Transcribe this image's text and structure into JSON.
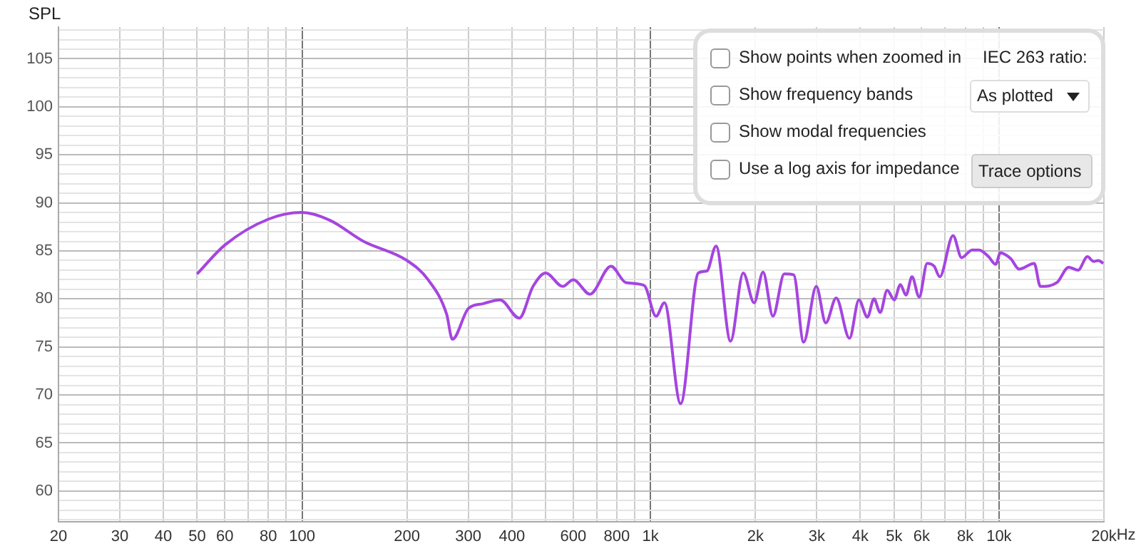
{
  "chart_data": {
    "type": "line",
    "ylabel": "SPL",
    "color": "#a545e0",
    "grid": true,
    "legend": false,
    "marker": "none",
    "line_style": "solid",
    "log": "x",
    "x": [
      50,
      60,
      80,
      100,
      120,
      150,
      200,
      230,
      260,
      270,
      300,
      330,
      370,
      420,
      460,
      500,
      560,
      600,
      670,
      770,
      850,
      959,
      1037,
      1096,
      1220,
      1371,
      1450,
      1542,
      1697,
      1845,
      1983,
      2103,
      2245,
      2420,
      2576,
      2750,
      2990,
      3183,
      3410,
      3724,
      3963,
      4191,
      4377,
      4560,
      4777,
      5004,
      5211,
      5409,
      5627,
      5900,
      6222,
      6516,
      6760,
      7380,
      7810,
      8370,
      8770,
      9330,
      9780,
      10090,
      10800,
      11420,
      12620,
      13140,
      14660,
      15840,
      16860,
      17940,
      18690,
      19290,
      19910
    ],
    "values": [
      82.6,
      85.6,
      88.3,
      89.0,
      88.2,
      86.0,
      84.0,
      82.0,
      78.4,
      75.8,
      79.0,
      79.5,
      79.9,
      78.0,
      81.3,
      82.7,
      81.3,
      82.0,
      80.5,
      83.4,
      81.7,
      81.4,
      78.2,
      79.6,
      69.1,
      82.7,
      82.9,
      85.5,
      75.6,
      82.7,
      79.6,
      82.8,
      78.2,
      82.6,
      82.5,
      75.5,
      81.3,
      77.5,
      80.1,
      75.9,
      79.9,
      78.1,
      80.0,
      78.6,
      80.9,
      79.9,
      81.5,
      80.4,
      82.3,
      80.2,
      83.7,
      83.4,
      82.3,
      86.6,
      84.3,
      85.1,
      85.1,
      84.4,
      83.6,
      84.8,
      84.2,
      83.1,
      83.7,
      81.3,
      81.7,
      83.3,
      83.0,
      84.4,
      83.9,
      84.0,
      83.7
    ],
    "xlim": [
      20,
      20000
    ],
    "xticks": [
      20,
      30,
      40,
      50,
      60,
      {
        "value": 70,
        "label": null
      },
      80,
      {
        "value": 90,
        "label": null
      },
      100,
      200,
      300,
      400,
      {
        "value": 500,
        "label": null
      },
      600,
      {
        "value": 700,
        "label": null
      },
      800,
      {
        "value": 900,
        "label": null
      },
      {
        "value": 1000,
        "label": "1k"
      },
      {
        "value": 2000,
        "label": "2k"
      },
      {
        "value": 3000,
        "label": "3k"
      },
      {
        "value": 4000,
        "label": "4k"
      },
      {
        "value": 5000,
        "label": "5k"
      },
      {
        "value": 6000,
        "label": "6k"
      },
      {
        "value": 7000,
        "label": null
      },
      {
        "value": 8000,
        "label": "8k"
      },
      {
        "value": 9000,
        "label": null
      },
      {
        "value": 10000,
        "label": "10k"
      },
      {
        "value": 20000,
        "label": "20k"
      }
    ],
    "xlabel": "Hz",
    "ylim": [
      56.8,
      108.3
    ],
    "yticks": [
      {
        "value": 57,
        "label": null
      },
      {
        "value": 58,
        "label": null
      },
      {
        "value": 59,
        "label": null
      },
      60,
      {
        "value": 61,
        "label": null
      },
      {
        "value": 62,
        "label": null
      },
      {
        "value": 63,
        "label": null
      },
      {
        "value": 64,
        "label": null
      },
      65,
      {
        "value": 66,
        "label": null
      },
      {
        "value": 67,
        "label": null
      },
      {
        "value": 68,
        "label": null
      },
      {
        "value": 69,
        "label": null
      },
      70,
      {
        "value": 71,
        "label": null
      },
      {
        "value": 72,
        "label": null
      },
      {
        "value": 73,
        "label": null
      },
      {
        "value": 74,
        "label": null
      },
      75,
      {
        "value": 76,
        "label": null
      },
      {
        "value": 77,
        "label": null
      },
      {
        "value": 78,
        "label": null
      },
      {
        "value": 79,
        "label": null
      },
      80,
      {
        "value": 81,
        "label": null
      },
      {
        "value": 82,
        "label": null
      },
      {
        "value": 83,
        "label": null
      },
      {
        "value": 84,
        "label": null
      },
      85,
      {
        "value": 86,
        "label": null
      },
      {
        "value": 87,
        "label": null
      },
      {
        "value": 88,
        "label": null
      },
      {
        "value": 89,
        "label": null
      },
      90,
      {
        "value": 91,
        "label": null
      },
      {
        "value": 92,
        "label": null
      },
      {
        "value": 93,
        "label": null
      },
      {
        "value": 94,
        "label": null
      },
      95,
      {
        "value": 96,
        "label": null
      },
      {
        "value": 97,
        "label": null
      },
      {
        "value": 98,
        "label": null
      },
      {
        "value": 99,
        "label": null
      },
      100,
      {
        "value": 101,
        "label": null
      },
      {
        "value": 102,
        "label": null
      },
      {
        "value": 103,
        "label": null
      },
      {
        "value": 104,
        "label": null
      },
      105,
      {
        "value": 106,
        "label": null
      },
      {
        "value": 107,
        "label": null
      },
      {
        "value": 108,
        "label": null
      }
    ],
    "annotations": [
      "Show points when zoomed in",
      "Show frequency bands",
      "Show modal frequencies",
      "Use a log axis for impedance",
      "IEC 263 ratio:",
      "As plotted",
      "Trace options"
    ]
  }
}
